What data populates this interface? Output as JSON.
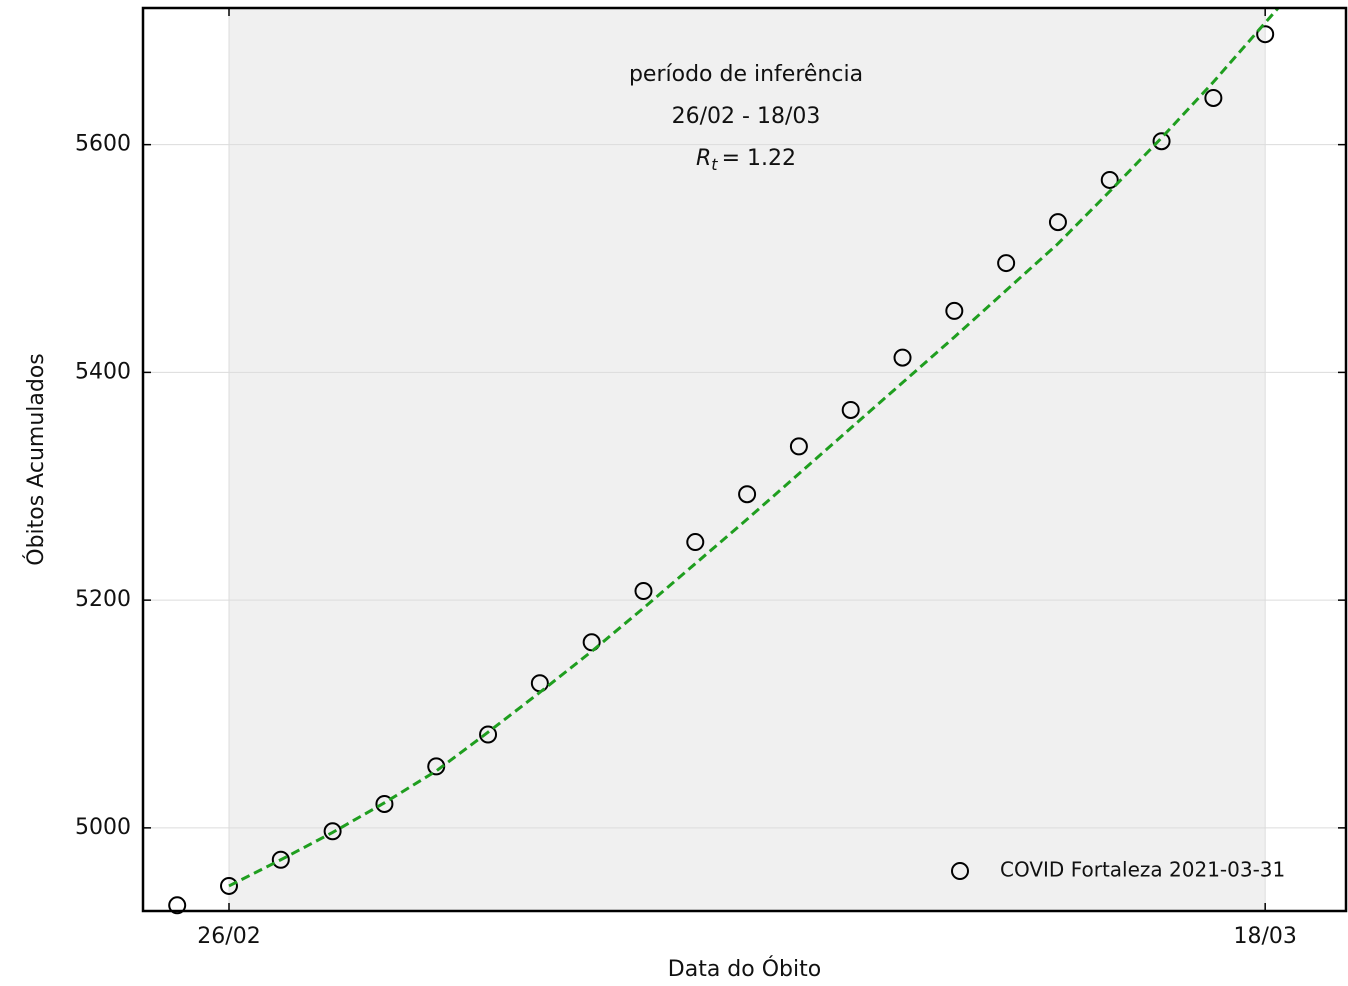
{
  "chart_data": {
    "type": "scatter",
    "xlabel": "Data do Óbito",
    "ylabel": "Óbitos Acumulados",
    "xlim": [
      -1.66,
      21.56
    ],
    "ylim": [
      4927,
      5720
    ],
    "xticks": [
      {
        "value": 0,
        "label": "26/02"
      },
      {
        "value": 20,
        "label": "18/03"
      }
    ],
    "yticks": [
      5000,
      5200,
      5400,
      5600
    ],
    "grid": true,
    "span": {
      "x": [
        0,
        20
      ],
      "color": "#f0f0f0"
    },
    "annotation": {
      "lines": [
        "período de inferência",
        "26/02 - 18/03"
      ],
      "symbol": "R",
      "subscript": "t",
      "text": "= 1.22"
    },
    "legend": "lower right",
    "series": [
      {
        "name": "COVID Fortaleza 2021-03-31",
        "color": "#000000",
        "marker": "o",
        "x": [
          -1,
          0,
          1,
          2,
          3,
          4,
          5,
          6,
          7,
          8,
          9,
          10,
          11,
          12,
          13,
          14,
          15,
          16,
          17,
          18,
          19,
          20
        ],
        "values": [
          4932,
          4949,
          4972,
          4997,
          5021,
          5054,
          5082,
          5127,
          5163,
          5208,
          5251,
          5293,
          5335,
          5367,
          5413,
          5454,
          5496,
          5532,
          5569,
          5603,
          5641,
          5697
        ]
      },
      {
        "color": "#1f9e1f",
        "linestyle": "dashed",
        "x": [
          0,
          1,
          2,
          3,
          4,
          5,
          6,
          7,
          8,
          9,
          10,
          11,
          12,
          13,
          14,
          15,
          16,
          17,
          18,
          19,
          20,
          20.25
        ],
        "values": [
          4949,
          4972,
          4996,
          5022,
          5050,
          5084,
          5119,
          5155,
          5193,
          5232,
          5271,
          5311,
          5351,
          5391,
          5431,
          5472,
          5513,
          5559,
          5606,
          5655,
          5707,
          5720
        ]
      }
    ]
  }
}
